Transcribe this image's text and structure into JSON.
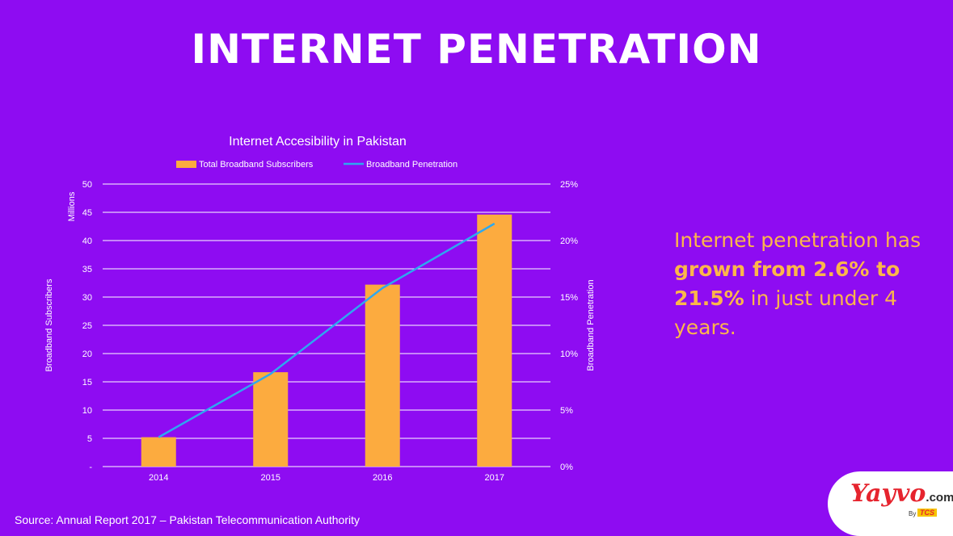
{
  "slide": {
    "title": "INTERNET PENETRATION",
    "source": "Source: Annual Report 2017 – Pakistan Telecommunication Authority",
    "note_parts": [
      "Internet penetration has ",
      "grown from 2.6% to 21.5%",
      " in just under 4 years."
    ]
  },
  "logo": {
    "brand": "Yayvo",
    "domain": ".com",
    "by": "By",
    "partner": "TCS"
  },
  "colors": {
    "background": "#8e0cf2",
    "bar": "#fcab3f",
    "line": "#2ea8ef",
    "accent_text": "#fcb64a",
    "grid": "#ffffff"
  },
  "chart_data": {
    "type": "bar",
    "title": "Internet Accesibility in Pakistan",
    "categories": [
      "2014",
      "2015",
      "2016",
      "2017"
    ],
    "series": [
      {
        "name": "Total Broadband Subscribers",
        "type": "bar",
        "axis": "left",
        "values": [
          5.2,
          16.7,
          32.2,
          44.6
        ]
      },
      {
        "name": "Broadband Penetration",
        "type": "line",
        "axis": "right",
        "values": [
          2.6,
          8.2,
          15.8,
          21.5
        ]
      }
    ],
    "ylabel": "Broadband Subscribers",
    "yunit": "Millions",
    "y2label": "Broadband Penetration",
    "ylim": [
      0,
      50
    ],
    "y2lim": [
      0,
      25
    ],
    "yticks": [
      "-",
      "5",
      "10",
      "15",
      "20",
      "25",
      "30",
      "35",
      "40",
      "45",
      "50"
    ],
    "y2ticks": [
      "0%",
      "5%",
      "10%",
      "15%",
      "20%",
      "25%"
    ],
    "grid": true,
    "legend": "top"
  }
}
